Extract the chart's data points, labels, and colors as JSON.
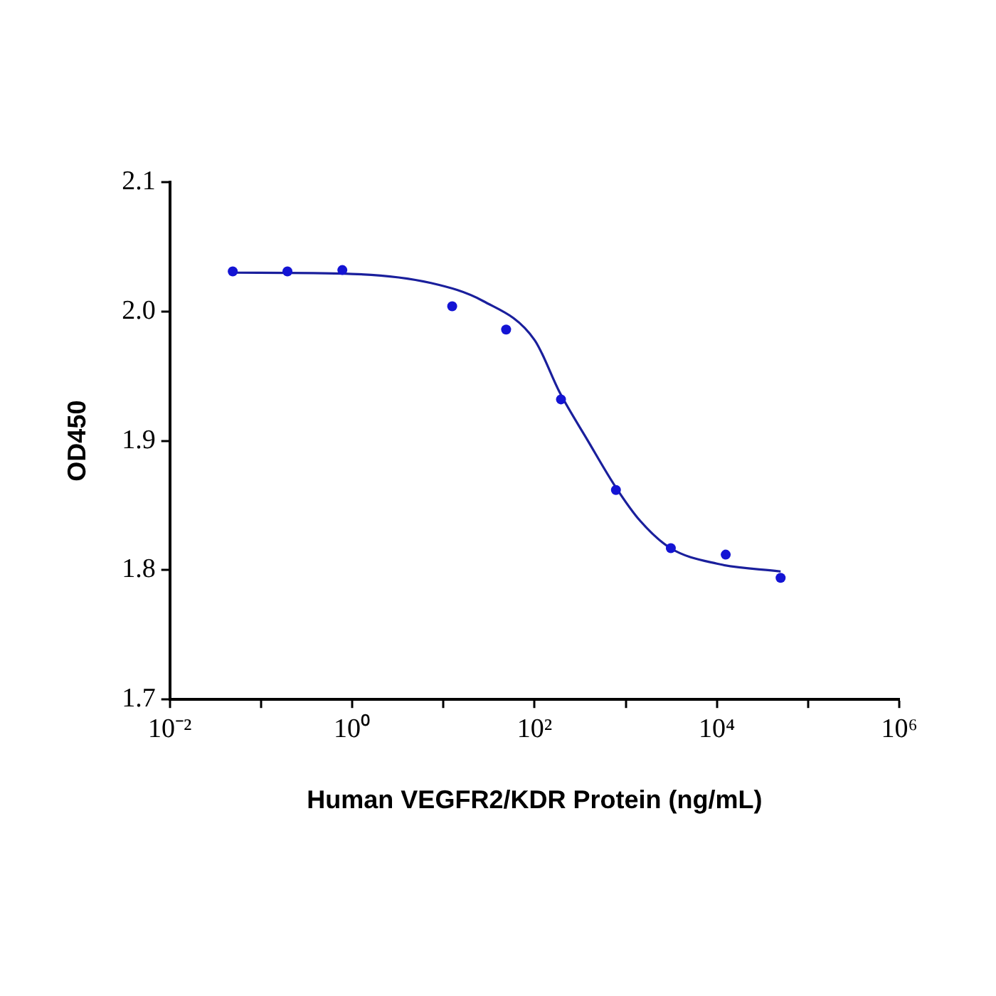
{
  "chart_data": {
    "type": "scatter",
    "xlabel": "Human VEGFR2/KDR Protein (ng/mL)",
    "ylabel": "OD450",
    "log": "x",
    "grid": false,
    "marker": "circle",
    "xlim": [
      0.01,
      1000000
    ],
    "xticks": [
      {
        "value": 0.01,
        "label": "10⁻²"
      },
      {
        "value": 0.1,
        "label": null
      },
      {
        "value": 1,
        "label": "10⁰"
      },
      {
        "value": 10,
        "label": null
      },
      {
        "value": 100,
        "label": "10²"
      },
      {
        "value": 1000,
        "label": null
      },
      {
        "value": 10000,
        "label": "10⁴"
      },
      {
        "value": 100000,
        "label": null
      },
      {
        "value": 1000000,
        "label": "10⁶"
      }
    ],
    "ylim": [
      1.7,
      2.1
    ],
    "yticks": [
      1.7,
      1.8,
      1.9,
      {
        "value": 2,
        "label": "2.0"
      },
      2.1
    ],
    "series": [
      {
        "color": "#1414d4",
        "x": [
          0.049,
          0.195,
          0.78,
          12.5,
          48.8,
          195,
          781,
          3125,
          12500,
          50000
        ],
        "values": [
          2.031,
          2.031,
          2.032,
          2.004,
          1.986,
          1.932,
          1.862,
          1.817,
          1.812,
          1.794
        ]
      },
      {
        "type": "line",
        "color": "#1a1f9c",
        "marker": "none",
        "x": [
          0.049,
          1,
          7.3,
          27.4,
          100,
          190,
          385,
          780,
          1445,
          3100,
          10000,
          50000
        ],
        "values": [
          2.03,
          2.029,
          2.022,
          2.008,
          1.978,
          1.937,
          1.9,
          1.864,
          1.838,
          1.817,
          1.805,
          1.799
        ]
      }
    ]
  }
}
